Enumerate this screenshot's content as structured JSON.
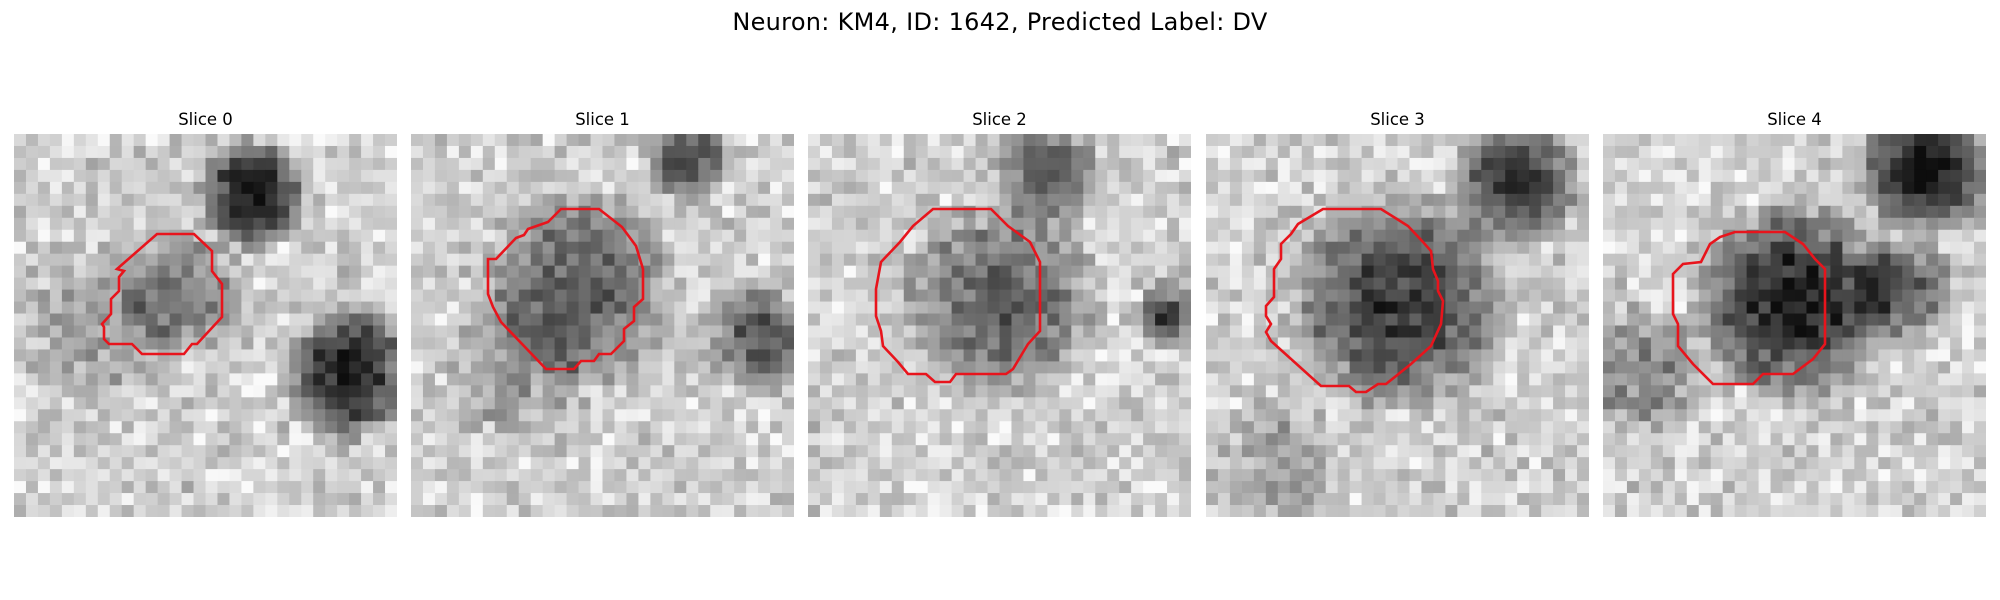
{
  "figure": {
    "title": "Neuron: KM4, ID: 1642, Predicted Label: DV"
  },
  "colors": {
    "contour": "#e8141c",
    "colormap": "gray"
  },
  "panels": [
    {
      "title": "Slice 0"
    },
    {
      "title": "Slice 1"
    },
    {
      "title": "Slice 2"
    },
    {
      "title": "Slice 3"
    },
    {
      "title": "Slice 4"
    }
  ]
}
